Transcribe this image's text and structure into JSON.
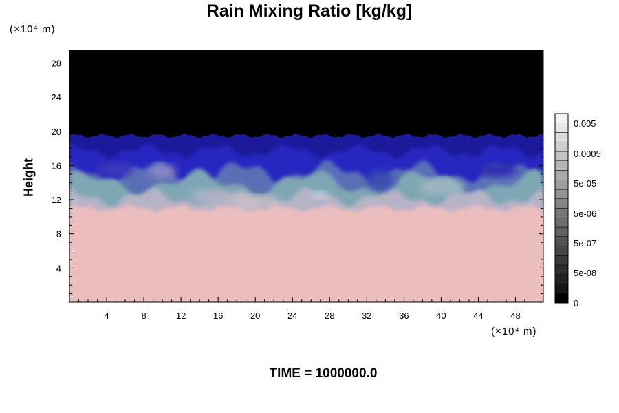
{
  "chart_data": {
    "type": "heatmap",
    "title": "Rain Mixing Ratio [kg/kg]",
    "ylabel": "Height",
    "x_unit": "(×10⁴ m)",
    "y_unit": "(×10⁴ m)",
    "x_ticks": [
      4,
      8,
      12,
      16,
      20,
      24,
      28,
      32,
      36,
      40,
      44,
      48
    ],
    "y_ticks": [
      4,
      8,
      12,
      16,
      20,
      24,
      28
    ],
    "xlim": [
      0,
      51
    ],
    "ylim": [
      0,
      29.5
    ],
    "colorbar_labels": [
      "0.005",
      "0.0005",
      "5e-05",
      "5e-06",
      "5e-07",
      "5e-08",
      "0"
    ],
    "colorbar_colors": [
      "#000000",
      "#161616",
      "#222222",
      "#2e2e2e",
      "#3a3a3a",
      "#474747",
      "#535353",
      "#606060",
      "#6c6c6c",
      "#787878",
      "#858585",
      "#919191",
      "#9d9d9d",
      "#aaaaaa",
      "#b6b6b6",
      "#c2c2c2",
      "#cfcfcf",
      "#dbdbdb",
      "#e7e7e7",
      "#f3f3f3"
    ],
    "regions": {
      "upper_black_top_height": 29.5,
      "dark_blue_top_height": 19.5,
      "blue_band_height": 16.5,
      "mixed_band_height": 13,
      "pink_top_height": 11
    },
    "colors": {
      "upper": "#000000",
      "dark_blue": "#1a1a9a",
      "blue": "#2525c0",
      "teal": "#7fa6b4",
      "pink": "#ecbdbd",
      "mixed": "#b7b3c6"
    },
    "grid": false,
    "legend": "colorbar-right"
  },
  "footer": {
    "time_label": "TIME = 1000000.0"
  }
}
